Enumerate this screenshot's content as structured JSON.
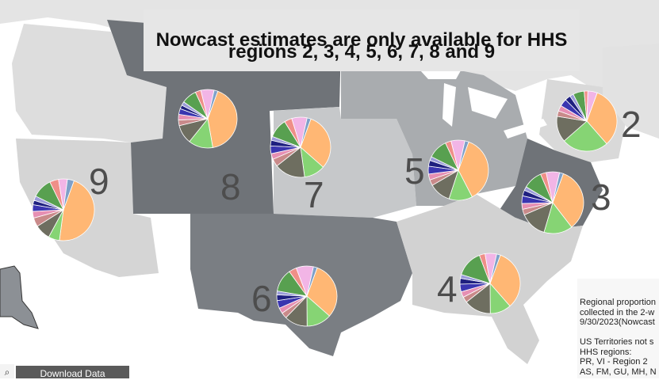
{
  "banner": {
    "line1": "Nowcast estimates are only available for HHS",
    "line2": "regions 2, 3, 4, 5, 6, 7, 8 and 9"
  },
  "region_labels": {
    "r2": "2",
    "r3": "3",
    "r4": "4",
    "r5": "5",
    "r6": "6",
    "r7": "7",
    "r8": "8",
    "r9": "9"
  },
  "sidebar": {
    "text": "Regional proportion\ncollected in the 2-w\n9/30/2023(Nowcast\n\nUS Territories not s\nHHS regions:\nPR, VI - Region 2\nAS, FM, GU, MH, N"
  },
  "controls": {
    "search_icon": "search-icon",
    "download_label": "Download Data"
  },
  "colors": {
    "region_dark": "#6f7378",
    "region_mid": "#a3a6aa",
    "region_light": "#d4d4d4",
    "region_pale": "#e2e2e2",
    "pie_palette": [
      "#ffb774",
      "#86d474",
      "#6e6e60",
      "#c98a8a",
      "#e68fb3",
      "#3a35b0",
      "#1f2080",
      "#9a9cd8",
      "#58a050",
      "#ef8f88",
      "#f2b5e6",
      "#7fa0c8"
    ]
  },
  "map_data": {
    "note_regions": [
      "2",
      "3",
      "4",
      "5",
      "6",
      "7",
      "8",
      "9"
    ],
    "pies": [
      {
        "region": "9",
        "shares": [
          40,
          5,
          7,
          4,
          3,
          3,
          2,
          2,
          9,
          4,
          4,
          3
        ]
      },
      {
        "region": "8",
        "shares": [
          40,
          13,
          10,
          3,
          3,
          3,
          2,
          2,
          8,
          3,
          7,
          2
        ]
      },
      {
        "region": "7",
        "shares": [
          30,
          11,
          16,
          4,
          3,
          4,
          3,
          2,
          10,
          4,
          8,
          2
        ]
      },
      {
        "region": "5",
        "shares": [
          35,
          12,
          11,
          3,
          3,
          4,
          3,
          2,
          10,
          3,
          7,
          2
        ]
      },
      {
        "region": "2",
        "shares": [
          33,
          25,
          14,
          3,
          3,
          4,
          3,
          2,
          6,
          2,
          5,
          0
        ]
      },
      {
        "region": "3",
        "shares": [
          34,
          15,
          14,
          3,
          3,
          4,
          3,
          2,
          10,
          3,
          7,
          2
        ]
      },
      {
        "region": "6",
        "shares": [
          30,
          13,
          12,
          3,
          3,
          4,
          3,
          2,
          12,
          4,
          9,
          2
        ]
      },
      {
        "region": "4",
        "shares": [
          32,
          11,
          14,
          3,
          3,
          4,
          3,
          2,
          14,
          3,
          6,
          2
        ]
      }
    ]
  }
}
